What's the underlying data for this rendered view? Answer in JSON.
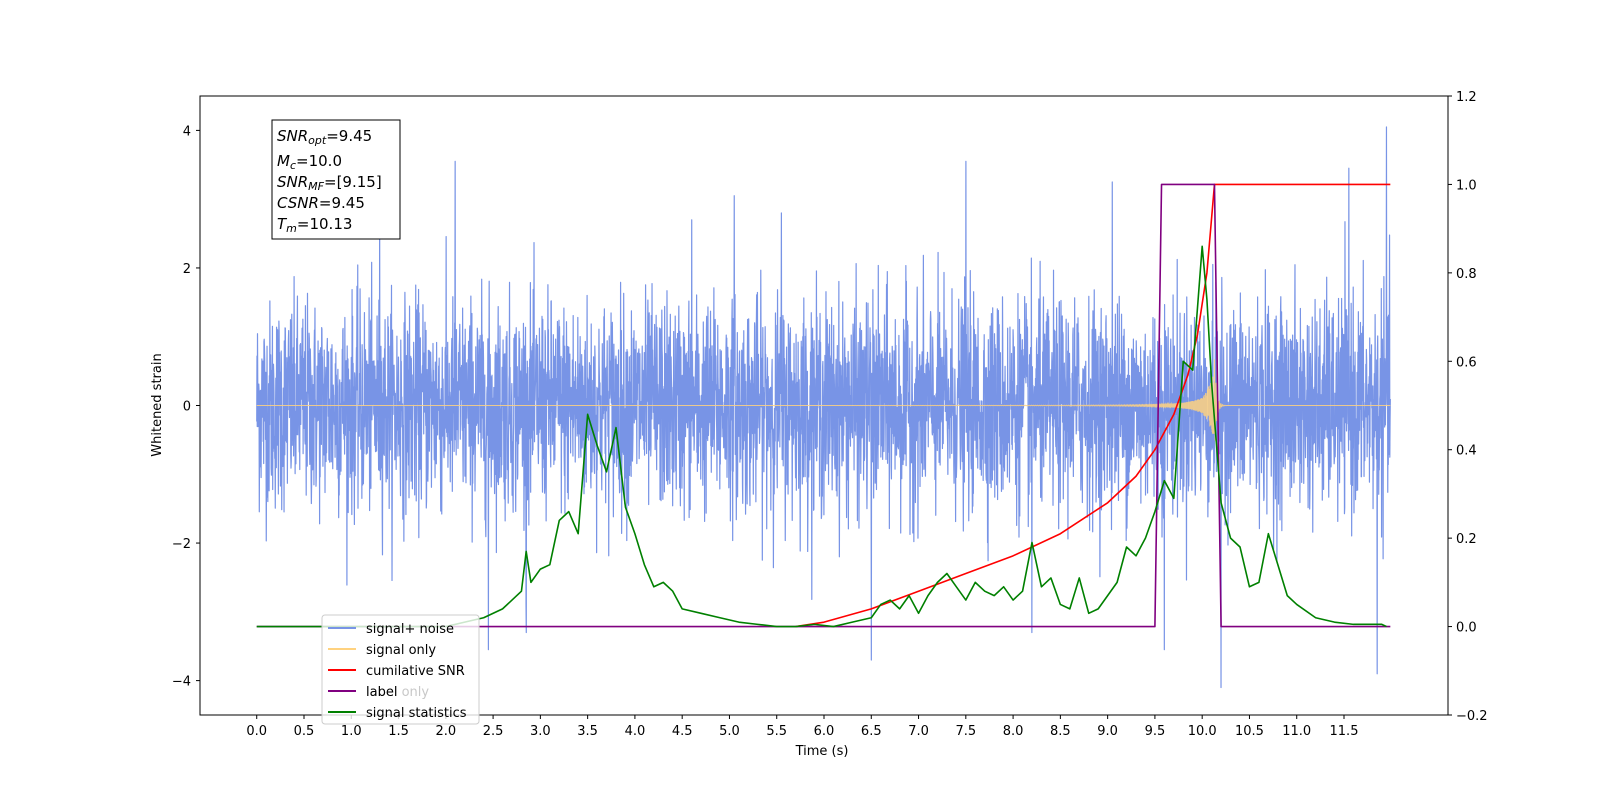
{
  "chart_data": {
    "type": "line",
    "xlabel": "Time (s)",
    "ylabel": "Whitened strain",
    "xlim": [
      -0.6,
      12.6
    ],
    "ylim": [
      -4.5,
      4.5
    ],
    "y2lim": [
      -0.2,
      1.2
    ],
    "x_ticks": [
      "0.0",
      "0.5",
      "1.0",
      "1.5",
      "2.0",
      "2.5",
      "3.0",
      "3.5",
      "4.0",
      "4.5",
      "5.0",
      "5.5",
      "6.0",
      "6.5",
      "7.0",
      "7.5",
      "8.0",
      "8.5",
      "9.0",
      "9.5",
      "10.0",
      "10.5",
      "11.0",
      "11.5"
    ],
    "x_tick_values": [
      0.0,
      0.5,
      1.0,
      1.5,
      2.0,
      2.5,
      3.0,
      3.5,
      4.0,
      4.5,
      5.0,
      5.5,
      6.0,
      6.5,
      7.0,
      7.5,
      8.0,
      8.5,
      9.0,
      9.5,
      10.0,
      10.5,
      11.0,
      11.5
    ],
    "y_ticks": [
      "4",
      "2",
      "0",
      "−2",
      "−4"
    ],
    "y_tick_values": [
      4,
      2,
      0,
      -2,
      -4
    ],
    "y2_ticks": [
      "1.2",
      "1.0",
      "0.8",
      "0.6",
      "0.4",
      "0.2",
      "0.0",
      "−0.2"
    ],
    "y2_tick_values": [
      1.2,
      1.0,
      0.8,
      0.6,
      0.4,
      0.2,
      0.0,
      -0.2
    ],
    "annotation": {
      "snr_opt": {
        "sym": "SNR",
        "sub": "opt",
        "val": "=9.45"
      },
      "mc": {
        "sym": "M",
        "sub": "c",
        "val": "=10.0"
      },
      "snr_mf": {
        "sym": "SNR",
        "sub": "MF",
        "val": "=[9.15]"
      },
      "csnr": {
        "sym": "CSNR",
        "sub": "",
        "val": "=9.45"
      },
      "tm": {
        "sym": "T",
        "sub": "m",
        "val": "=10.13"
      }
    },
    "legend": {
      "placement": "lower-left",
      "entries": [
        {
          "name": "signal+ noise",
          "color": "#7894e6"
        },
        {
          "name": "signal only",
          "color": "#ffd27f"
        },
        {
          "name": "cumilative SNR",
          "color": "#ff0000"
        },
        {
          "name": "label",
          "color": "#800080"
        },
        {
          "name": "signal statistics",
          "color": "#008000"
        }
      ],
      "ghost_text": "label only"
    },
    "series": [
      {
        "name": "signal+ noise",
        "axis": "left",
        "color": "#7894e6",
        "x_range": [
          0.0,
          11.99
        ],
        "envelope_sigma": 0.75,
        "spikes": [
          [
            1.3,
            2.9
          ],
          [
            2.1,
            3.55
          ],
          [
            4.6,
            2.7
          ],
          [
            5.05,
            3.05
          ],
          [
            5.55,
            2.8
          ],
          [
            6.5,
            -3.7
          ],
          [
            7.5,
            3.55
          ],
          [
            8.2,
            -3.3
          ],
          [
            9.05,
            3.25
          ],
          [
            9.6,
            -3.55
          ],
          [
            10.2,
            -4.1
          ],
          [
            11.55,
            3.45
          ],
          [
            11.85,
            -3.9
          ],
          [
            11.95,
            4.05
          ],
          [
            2.45,
            -3.55
          ],
          [
            2.85,
            -3.3
          ]
        ]
      },
      {
        "name": "signal only",
        "axis": "left",
        "color": "#ffd27f",
        "t_merger": 10.13,
        "peak_amplitude": 1.6
      },
      {
        "name": "cumilative SNR",
        "axis": "right",
        "color": "#ff0000",
        "x": [
          5.7,
          6.0,
          6.5,
          7.0,
          7.5,
          8.0,
          8.5,
          9.0,
          9.3,
          9.5,
          9.7,
          9.85,
          9.95,
          10.05,
          10.13,
          10.5,
          11.0,
          11.5,
          11.99
        ],
        "y": [
          0.0,
          0.01,
          0.04,
          0.08,
          0.12,
          0.16,
          0.21,
          0.28,
          0.34,
          0.4,
          0.48,
          0.57,
          0.66,
          0.8,
          1.0,
          1.0,
          1.0,
          1.0,
          1.0
        ]
      },
      {
        "name": "label",
        "axis": "right",
        "color": "#800080",
        "x": [
          0.0,
          9.5,
          9.57,
          10.13,
          10.2,
          11.99
        ],
        "y": [
          0.0,
          0.0,
          1.0,
          1.0,
          0.0,
          0.0
        ]
      },
      {
        "name": "signal statistics",
        "axis": "right",
        "color": "#008000",
        "x": [
          0.0,
          2.0,
          2.2,
          2.4,
          2.6,
          2.7,
          2.8,
          2.85,
          2.9,
          3.0,
          3.1,
          3.2,
          3.3,
          3.4,
          3.5,
          3.6,
          3.7,
          3.8,
          3.9,
          4.0,
          4.1,
          4.2,
          4.3,
          4.4,
          4.5,
          4.7,
          4.9,
          5.1,
          5.3,
          5.5,
          5.7,
          5.9,
          6.1,
          6.3,
          6.5,
          6.6,
          6.7,
          6.8,
          6.9,
          7.0,
          7.1,
          7.2,
          7.3,
          7.4,
          7.5,
          7.6,
          7.7,
          7.8,
          7.9,
          8.0,
          8.1,
          8.2,
          8.3,
          8.4,
          8.5,
          8.6,
          8.7,
          8.8,
          8.9,
          9.0,
          9.1,
          9.2,
          9.3,
          9.4,
          9.5,
          9.6,
          9.7,
          9.8,
          9.9,
          10.0,
          10.05,
          10.1,
          10.2,
          10.3,
          10.4,
          10.5,
          10.6,
          10.7,
          10.8,
          10.9,
          11.0,
          11.2,
          11.4,
          11.6,
          11.8,
          11.9,
          11.95
        ],
        "y": [
          0.0,
          0.0,
          0.01,
          0.02,
          0.04,
          0.06,
          0.08,
          0.17,
          0.1,
          0.13,
          0.14,
          0.24,
          0.26,
          0.21,
          0.48,
          0.41,
          0.35,
          0.45,
          0.27,
          0.21,
          0.14,
          0.09,
          0.1,
          0.08,
          0.04,
          0.03,
          0.02,
          0.01,
          0.005,
          0.0,
          0.0,
          0.005,
          0.0,
          0.01,
          0.02,
          0.05,
          0.06,
          0.04,
          0.07,
          0.03,
          0.07,
          0.1,
          0.12,
          0.09,
          0.06,
          0.1,
          0.08,
          0.07,
          0.09,
          0.06,
          0.08,
          0.19,
          0.09,
          0.11,
          0.05,
          0.04,
          0.11,
          0.03,
          0.04,
          0.07,
          0.1,
          0.18,
          0.16,
          0.2,
          0.26,
          0.33,
          0.29,
          0.6,
          0.58,
          0.86,
          0.74,
          0.55,
          0.28,
          0.2,
          0.18,
          0.09,
          0.1,
          0.21,
          0.14,
          0.07,
          0.05,
          0.02,
          0.01,
          0.005,
          0.005,
          0.005,
          0.0
        ]
      }
    ]
  }
}
